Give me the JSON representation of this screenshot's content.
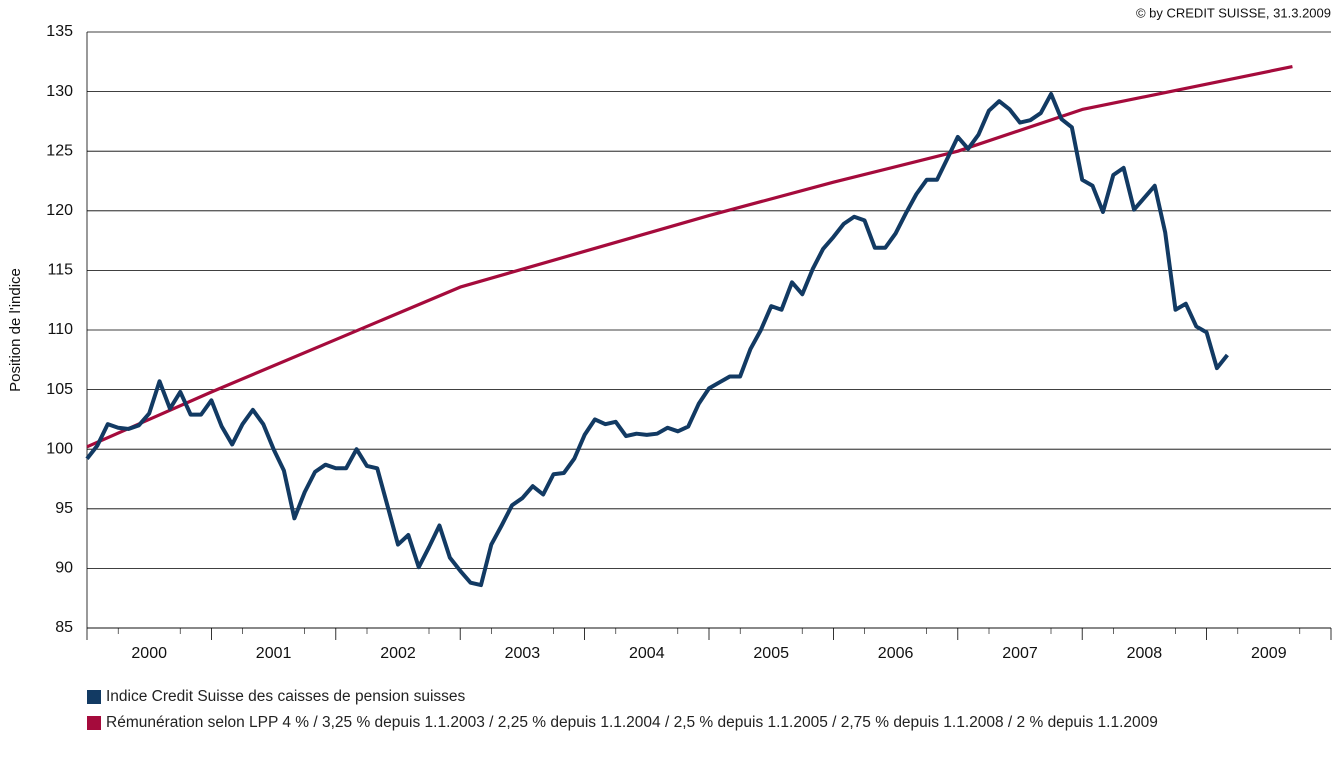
{
  "chart_data": {
    "type": "line",
    "source_note": "© by CREDIT SUISSE, 31.3.2009",
    "ylabel": "Position de l'indice",
    "xlim": [
      2000,
      2010
    ],
    "xticks": [
      {
        "value": 2000.5,
        "label": "2000"
      },
      {
        "value": 2001.5,
        "label": "2001"
      },
      {
        "value": 2002.5,
        "label": "2002"
      },
      {
        "value": 2003.5,
        "label": "2003"
      },
      {
        "value": 2004.5,
        "label": "2004"
      },
      {
        "value": 2005.5,
        "label": "2005"
      },
      {
        "value": 2006.5,
        "label": "2006"
      },
      {
        "value": 2007.5,
        "label": "2007"
      },
      {
        "value": 2008.5,
        "label": "2008"
      },
      {
        "value": 2009.5,
        "label": "2009"
      }
    ],
    "ylim": [
      85,
      135
    ],
    "yticks": [
      85,
      90,
      95,
      100,
      105,
      110,
      115,
      120,
      125,
      130,
      135
    ],
    "grid": true,
    "legend": "bottom",
    "series": [
      {
        "name": "Indice Credit Suisse des caisses de pension suisses",
        "color": "#123a63",
        "x": [
          2000,
          2000.083,
          2000.167,
          2000.25,
          2000.333,
          2000.417,
          2000.5,
          2000.583,
          2000.667,
          2000.75,
          2000.833,
          2000.917,
          2001,
          2001.083,
          2001.167,
          2001.25,
          2001.333,
          2001.417,
          2001.5,
          2001.583,
          2001.667,
          2001.75,
          2001.833,
          2001.917,
          2002,
          2002.083,
          2002.167,
          2002.25,
          2002.333,
          2002.417,
          2002.5,
          2002.583,
          2002.667,
          2002.75,
          2002.833,
          2002.917,
          2003,
          2003.083,
          2003.167,
          2003.25,
          2003.333,
          2003.417,
          2003.5,
          2003.583,
          2003.667,
          2003.75,
          2003.833,
          2003.917,
          2004,
          2004.083,
          2004.167,
          2004.25,
          2004.333,
          2004.417,
          2004.5,
          2004.583,
          2004.667,
          2004.75,
          2004.833,
          2004.917,
          2005,
          2005.083,
          2005.167,
          2005.25,
          2005.333,
          2005.417,
          2005.5,
          2005.583,
          2005.667,
          2005.75,
          2005.833,
          2005.917,
          2006,
          2006.083,
          2006.167,
          2006.25,
          2006.333,
          2006.417,
          2006.5,
          2006.583,
          2006.667,
          2006.75,
          2006.833,
          2006.917,
          2007,
          2007.083,
          2007.167,
          2007.25,
          2007.333,
          2007.417,
          2007.5,
          2007.583,
          2007.667,
          2007.75,
          2007.833,
          2007.917,
          2008,
          2008.083,
          2008.167,
          2008.25,
          2008.333,
          2008.417,
          2008.5,
          2008.583,
          2008.667,
          2008.75,
          2008.833,
          2008.917,
          2009,
          2009.083,
          2009.167
        ],
        "values": [
          99.2,
          100.3,
          102.1,
          101.8,
          101.7,
          102.0,
          103.0,
          105.7,
          103.4,
          104.8,
          102.9,
          102.9,
          104.1,
          101.9,
          100.4,
          102.1,
          103.3,
          102.1,
          100.0,
          98.2,
          94.2,
          96.4,
          98.1,
          98.7,
          98.4,
          98.4,
          100.0,
          98.6,
          98.4,
          95.2,
          92.0,
          92.8,
          90.1,
          91.8,
          93.6,
          90.9,
          89.8,
          88.8,
          88.6,
          92.0,
          93.6,
          95.3,
          95.9,
          96.9,
          96.2,
          97.9,
          98.0,
          99.2,
          101.2,
          102.5,
          102.1,
          102.3,
          101.1,
          101.3,
          101.2,
          101.3,
          101.8,
          101.5,
          101.9,
          103.8,
          105.1,
          105.6,
          106.1,
          106.1,
          108.4,
          110.0,
          112.0,
          111.7,
          114.0,
          113.0,
          115.1,
          116.8,
          117.8,
          118.9,
          119.5,
          119.2,
          116.9,
          116.9,
          118.1,
          119.8,
          121.4,
          122.6,
          122.6,
          124.4,
          126.2,
          125.2,
          126.4,
          128.4,
          129.2,
          128.5,
          127.4,
          127.6,
          128.2,
          129.8,
          127.7,
          127.0,
          122.6,
          122.1,
          119.9,
          123.0,
          123.6,
          120.1,
          121.1,
          122.1,
          118.2,
          111.7,
          112.2,
          110.3,
          109.8,
          106.8,
          107.9
        ]
      },
      {
        "name": "Rémunération selon LPP 4 % / 3,25 % depuis 1.1.2003 / 2,25 % depuis 1.1.2004 / 2,5 % depuis 1.1.2005 / 2,75 % depuis 1.1.2008 / 2 % depuis 1.1.2009",
        "color": "#a50b3c",
        "x": [
          2000,
          2001,
          2002,
          2003,
          2004,
          2005,
          2006,
          2007,
          2008,
          2009.69
        ],
        "values": [
          100.2,
          104.8,
          109.2,
          113.6,
          116.6,
          119.6,
          122.4,
          125.0,
          128.5,
          132.1
        ]
      }
    ]
  }
}
